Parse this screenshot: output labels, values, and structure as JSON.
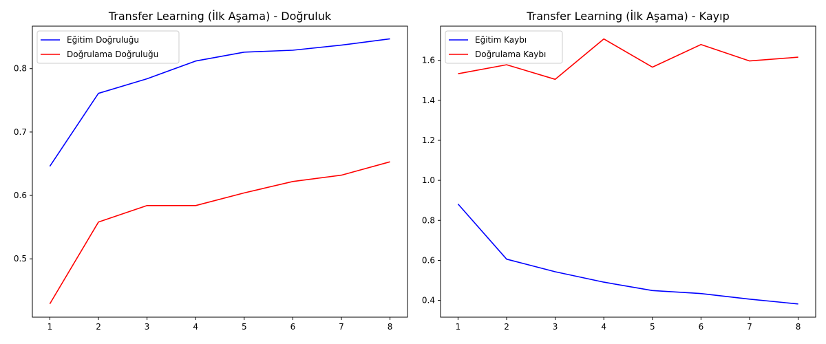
{
  "chart_data": [
    {
      "type": "line",
      "title": "Transfer Learning (İlk Aşama) - Doğruluk",
      "xlabel": "",
      "ylabel": "",
      "x": [
        1,
        2,
        3,
        4,
        5,
        6,
        7,
        8
      ],
      "xticks": [
        "1",
        "2",
        "3",
        "4",
        "5",
        "6",
        "7",
        "8"
      ],
      "yticks": [
        "0.5",
        "0.6",
        "0.7",
        "0.8"
      ],
      "xlim": [
        0.64,
        8.36
      ],
      "ylim": [
        0.408,
        0.867
      ],
      "grid": false,
      "legend": "upper-left",
      "series": [
        {
          "name": "Eğitim Doğruluğu",
          "color": "#0000ff",
          "values": [
            0.646,
            0.761,
            0.784,
            0.812,
            0.826,
            0.829,
            0.837,
            0.847
          ]
        },
        {
          "name": "Doğrulama Doğruluğu",
          "color": "#ff0000",
          "values": [
            0.429,
            0.558,
            0.584,
            0.584,
            0.604,
            0.622,
            0.632,
            0.653
          ]
        }
      ]
    },
    {
      "type": "line",
      "title": "Transfer Learning (İlk Aşama) - Kayıp",
      "xlabel": "",
      "ylabel": "",
      "x": [
        1,
        2,
        3,
        4,
        5,
        6,
        7,
        8
      ],
      "xticks": [
        "1",
        "2",
        "3",
        "4",
        "5",
        "6",
        "7",
        "8"
      ],
      "yticks": [
        "0.4",
        "0.6",
        "0.8",
        "1.0",
        "1.2",
        "1.4",
        "1.6"
      ],
      "xlim": [
        0.64,
        8.36
      ],
      "ylim": [
        0.316,
        1.771
      ],
      "grid": false,
      "legend": "upper-left",
      "series": [
        {
          "name": "Eğitim Kaybı",
          "color": "#0000ff",
          "values": [
            0.882,
            0.606,
            0.543,
            0.491,
            0.449,
            0.434,
            0.406,
            0.382
          ]
        },
        {
          "name": "Doğrulama Kaybı",
          "color": "#ff0000",
          "values": [
            1.533,
            1.578,
            1.505,
            1.707,
            1.566,
            1.679,
            1.597,
            1.616
          ]
        }
      ]
    }
  ]
}
